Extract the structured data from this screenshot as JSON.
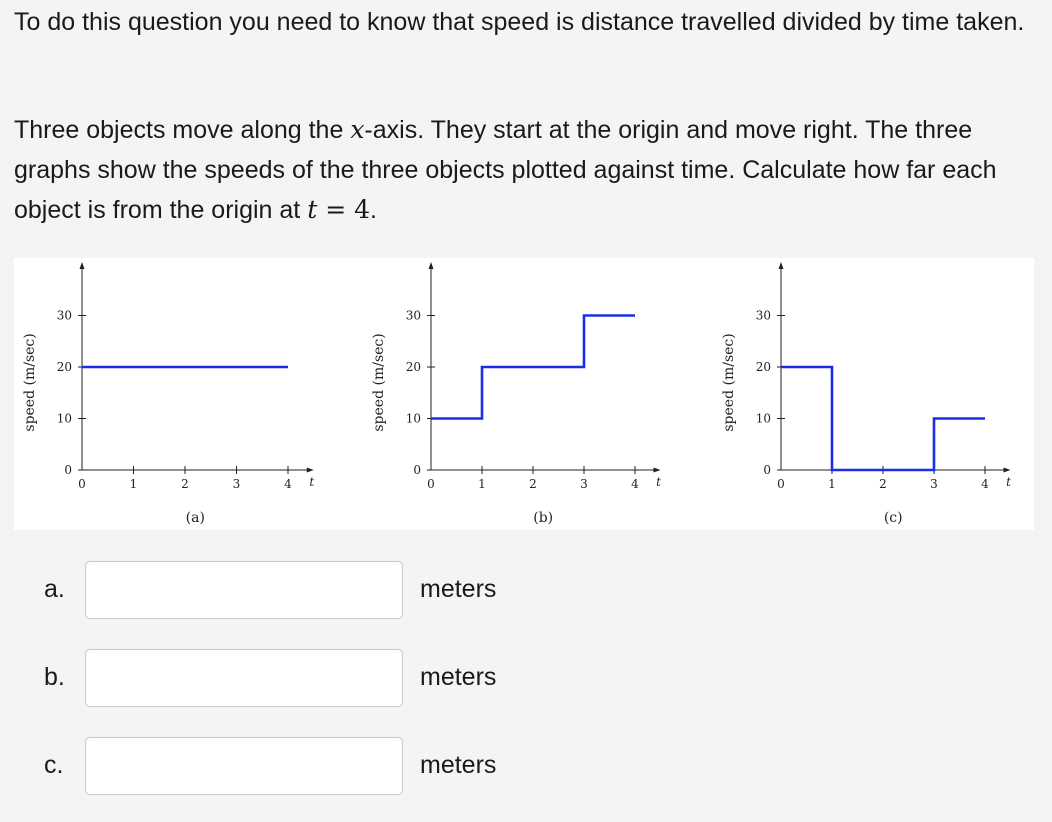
{
  "question": {
    "intro": "To do this question you need to know that speed is distance travelled divided by time taken.",
    "body_part1": "Three objects move along the ",
    "body_var_x": "x",
    "body_part2": "-axis. They start at the origin and move right. The three graphs show the speeds of the three objects plotted against time. Calculate how far each object is from the origin at ",
    "body_var_t": "t",
    "body_eq": " = 4",
    "body_end": "."
  },
  "chart_data": [
    {
      "type": "line",
      "caption": "(a)",
      "ylabel": "speed (m/sec)",
      "xlabel": "t",
      "xlim": [
        0,
        4.5
      ],
      "ylim": [
        0,
        34
      ],
      "x_ticks": [
        "0",
        "1",
        "2",
        "3",
        "4"
      ],
      "y_ticks": [
        "0",
        "10",
        "20",
        "30"
      ],
      "series": [
        {
          "x": [
            0,
            4
          ],
          "y": [
            20,
            20
          ]
        }
      ]
    },
    {
      "type": "line",
      "caption": "(b)",
      "ylabel": "speed (m/sec)",
      "xlabel": "t",
      "xlim": [
        0,
        4.5
      ],
      "ylim": [
        0,
        34
      ],
      "x_ticks": [
        "0",
        "1",
        "2",
        "3",
        "4"
      ],
      "y_ticks": [
        "0",
        "10",
        "20",
        "30"
      ],
      "series": [
        {
          "x": [
            0,
            1,
            1,
            3,
            3,
            4
          ],
          "y": [
            10,
            10,
            20,
            20,
            30,
            30
          ]
        }
      ]
    },
    {
      "type": "line",
      "caption": "(c)",
      "ylabel": "speed (m/sec)",
      "xlabel": "t",
      "xlim": [
        0,
        4.5
      ],
      "ylim": [
        0,
        34
      ],
      "x_ticks": [
        "0",
        "1",
        "2",
        "3",
        "4"
      ],
      "y_ticks": [
        "0",
        "10",
        "20",
        "30"
      ],
      "series": [
        {
          "x": [
            0,
            1,
            1,
            3,
            3,
            4
          ],
          "y": [
            20,
            20,
            0,
            0,
            10,
            10
          ]
        }
      ]
    }
  ],
  "answers": [
    {
      "letter": "a.",
      "value": "",
      "unit": "meters"
    },
    {
      "letter": "b.",
      "value": "",
      "unit": "meters"
    },
    {
      "letter": "c.",
      "value": "",
      "unit": "meters"
    }
  ],
  "colors": {
    "series": "#1a2ee6",
    "axis": "#222222",
    "page_background": "#f4f4f4"
  }
}
